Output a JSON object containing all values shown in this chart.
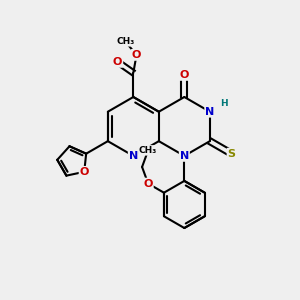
{
  "bg_color": "#efefef",
  "bond_color": "#000000",
  "bond_width": 1.5,
  "atom_colors": {
    "N": "#0000cc",
    "O": "#cc0000",
    "S": "#888800",
    "H": "#007777",
    "C": "#000000"
  },
  "font_size_atom": 8,
  "font_size_small": 6.5
}
